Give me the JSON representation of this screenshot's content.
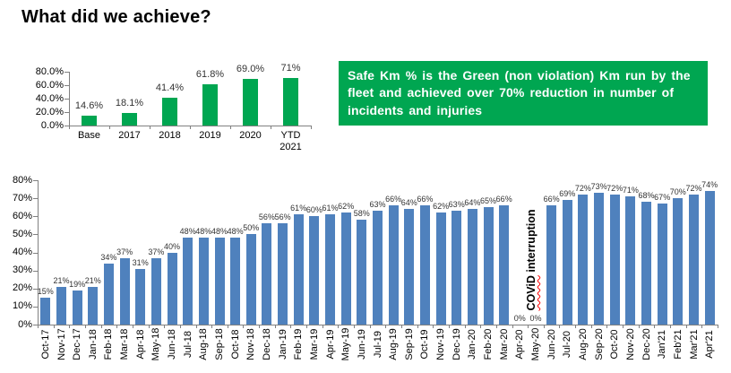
{
  "page": {
    "title": "What did we achieve?"
  },
  "callout": {
    "text": "Safe Km % is the Green (non violation) Km run by the fleet and achieved over 70% reduction in number of incidents and injuries",
    "bg_color": "#00A651",
    "text_color": "#FFFFFF"
  },
  "chart_data": [
    {
      "id": "annual_safe_km",
      "type": "bar",
      "title": "",
      "xlabel": "",
      "ylabel": "",
      "categories": [
        "Base",
        "2017",
        "2018",
        "2019",
        "2020",
        "YTD\n2021"
      ],
      "values": [
        14.6,
        18.1,
        41.4,
        61.8,
        69.0,
        71
      ],
      "data_labels": [
        "14.6%",
        "18.1%",
        "41.4%",
        "61.8%",
        "69.0%",
        "71%"
      ],
      "bar_color": "#00A651",
      "ylim": [
        0,
        80
      ],
      "ytick_labels": [
        "0.0%",
        "20.0%",
        "40.0%",
        "60.0%",
        "80.0%"
      ],
      "grid": false,
      "legend": "none"
    },
    {
      "id": "monthly_safe_km",
      "type": "bar",
      "title": "",
      "xlabel": "",
      "ylabel": "",
      "categories": [
        "Oct-17",
        "Nov-17",
        "Dec-17",
        "Jan-18",
        "Feb-18",
        "Mar-18",
        "Apr-18",
        "May-18",
        "Jun-18",
        "Jul-18",
        "Aug-18",
        "Sep-18",
        "Oct-18",
        "Nov-18",
        "Dec-18",
        "Jan-19",
        "Feb-19",
        "Mar-19",
        "Apr-19",
        "May-19",
        "Jun-19",
        "Jul-19",
        "Aug-19",
        "Sep-19",
        "Oct-19",
        "Nov-19",
        "Dec-19",
        "Jan-20",
        "Feb-20",
        "Mar-20",
        "Apr-20",
        "May-20",
        "Jun-20",
        "Jul-20",
        "Aug-20",
        "Sep-20",
        "Oct-20",
        "Nov-20",
        "Dec-20",
        "Jan'21",
        "Feb'21",
        "Mar'21",
        "Apr'21"
      ],
      "values": [
        15,
        21,
        19,
        21,
        34,
        37,
        31,
        37,
        40,
        48,
        48,
        48,
        48,
        50,
        56,
        56,
        61,
        60,
        61,
        62,
        58,
        63,
        66,
        64,
        66,
        62,
        63,
        64,
        65,
        66,
        0,
        0,
        66,
        69,
        72,
        73,
        72,
        71,
        68,
        67,
        70,
        72,
        74
      ],
      "data_labels": [
        "15%",
        "21%",
        "19%",
        "21%",
        "34%",
        "37%",
        "31%",
        "37%",
        "40%",
        "48%",
        "48%",
        "48%",
        "48%",
        "50%",
        "56%",
        "56%",
        "61%",
        "60%",
        "61%",
        "62%",
        "58%",
        "63%",
        "66%",
        "64%",
        "66%",
        "62%",
        "63%",
        "64%",
        "65%",
        "66%",
        "0%",
        "0%",
        "66%",
        "69%",
        "72%",
        "73%",
        "72%",
        "71%",
        "68%",
        "67%",
        "70%",
        "72%",
        "74%"
      ],
      "bar_color": "#4F81BD",
      "ylim": [
        0,
        80
      ],
      "ytick_labels": [
        "0%",
        "10%",
        "20%",
        "30%",
        "40%",
        "50%",
        "60%",
        "70%",
        "80%"
      ],
      "grid": false,
      "legend": "none",
      "annotation": {
        "text": "COViD interruption",
        "wavy_word": "COViD",
        "wavy_color": "#FF0000",
        "after_category": "Apr-20"
      }
    }
  ]
}
